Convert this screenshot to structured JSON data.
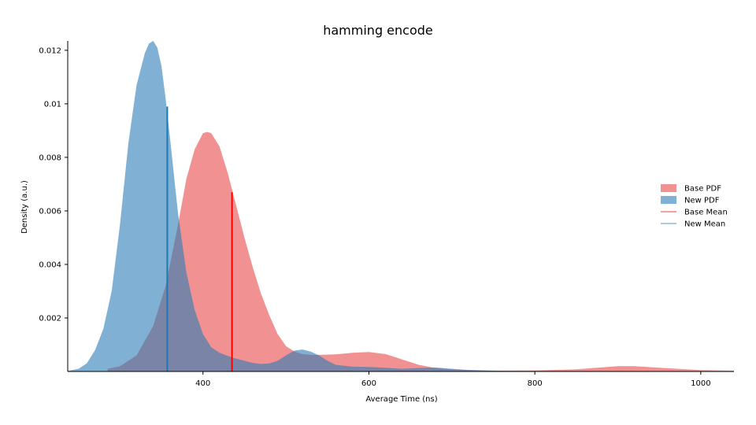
{
  "chart_data": {
    "type": "area",
    "title": "hamming encode",
    "xlabel": "Average Time (ns)",
    "ylabel": "Density (a.u.)",
    "xlim": [
      237,
      1040
    ],
    "ylim": [
      0,
      0.01235
    ],
    "xticks": [
      400,
      600,
      800,
      1000
    ],
    "yticks": [
      0.002,
      0.004,
      0.006,
      0.008,
      0.01,
      0.012
    ],
    "ytick_labels": [
      "0.002",
      "0.004",
      "0.006",
      "0.008",
      "0.01",
      "0.012"
    ],
    "legend_position": "right",
    "legend": [
      "Base PDF",
      "New PDF",
      "Base Mean",
      "New Mean"
    ],
    "colors": {
      "base_fill": "#e8474a",
      "new_fill": "#2c7bb6",
      "base_mean": "#ff0000",
      "new_mean": "#1f77b4",
      "base_legend_line": "#f08080",
      "new_legend_line": "#8fb8d4"
    },
    "series": [
      {
        "name": "Base PDF",
        "x": [
          285,
          300,
          320,
          340,
          355,
          370,
          380,
          390,
          400,
          405,
          410,
          420,
          430,
          440,
          450,
          460,
          470,
          480,
          490,
          500,
          510,
          520,
          530,
          540,
          560,
          580,
          600,
          620,
          640,
          660,
          680,
          700,
          720,
          750,
          800,
          850,
          880,
          900,
          920,
          950,
          1000,
          1040
        ],
        "y": [
          0.0001,
          0.0002,
          0.0006,
          0.0017,
          0.0032,
          0.0055,
          0.0072,
          0.0083,
          0.0089,
          0.00895,
          0.0089,
          0.0084,
          0.0074,
          0.0062,
          0.005,
          0.0039,
          0.0029,
          0.0021,
          0.0014,
          0.00095,
          0.00075,
          0.00065,
          0.00062,
          0.00062,
          0.00064,
          0.0007,
          0.00073,
          0.00065,
          0.00045,
          0.00025,
          0.00013,
          8e-05,
          5e-05,
          3e-05,
          4e-05,
          8e-05,
          0.00015,
          0.0002,
          0.0002,
          0.00014,
          5e-05,
          3e-05
        ]
      },
      {
        "name": "New PDF",
        "x": [
          237,
          250,
          260,
          270,
          280,
          290,
          300,
          310,
          320,
          330,
          335,
          340,
          345,
          350,
          355,
          360,
          370,
          380,
          390,
          400,
          410,
          420,
          430,
          440,
          450,
          460,
          470,
          480,
          490,
          500,
          510,
          520,
          530,
          540,
          550,
          560,
          580,
          600,
          620,
          640,
          660,
          680,
          700,
          720,
          760,
          800,
          1040
        ],
        "y": [
          2e-05,
          0.0001,
          0.0003,
          0.0008,
          0.0016,
          0.003,
          0.0055,
          0.0085,
          0.0107,
          0.0119,
          0.01225,
          0.01235,
          0.0121,
          0.0114,
          0.0102,
          0.0088,
          0.0059,
          0.0037,
          0.0023,
          0.0014,
          0.0009,
          0.0007,
          0.00058,
          0.00048,
          0.0004,
          0.00032,
          0.00028,
          0.0003,
          0.0004,
          0.0006,
          0.00078,
          0.00082,
          0.00074,
          0.0006,
          0.0004,
          0.00025,
          0.00018,
          0.00017,
          0.00014,
          0.0001,
          0.00013,
          0.00015,
          0.0001,
          6e-05,
          3e-05,
          2e-05,
          1e-05
        ]
      }
    ],
    "means": [
      {
        "name": "Base Mean",
        "x": 435,
        "y": 0.0067
      },
      {
        "name": "New Mean",
        "x": 357,
        "y": 0.0099
      }
    ]
  }
}
